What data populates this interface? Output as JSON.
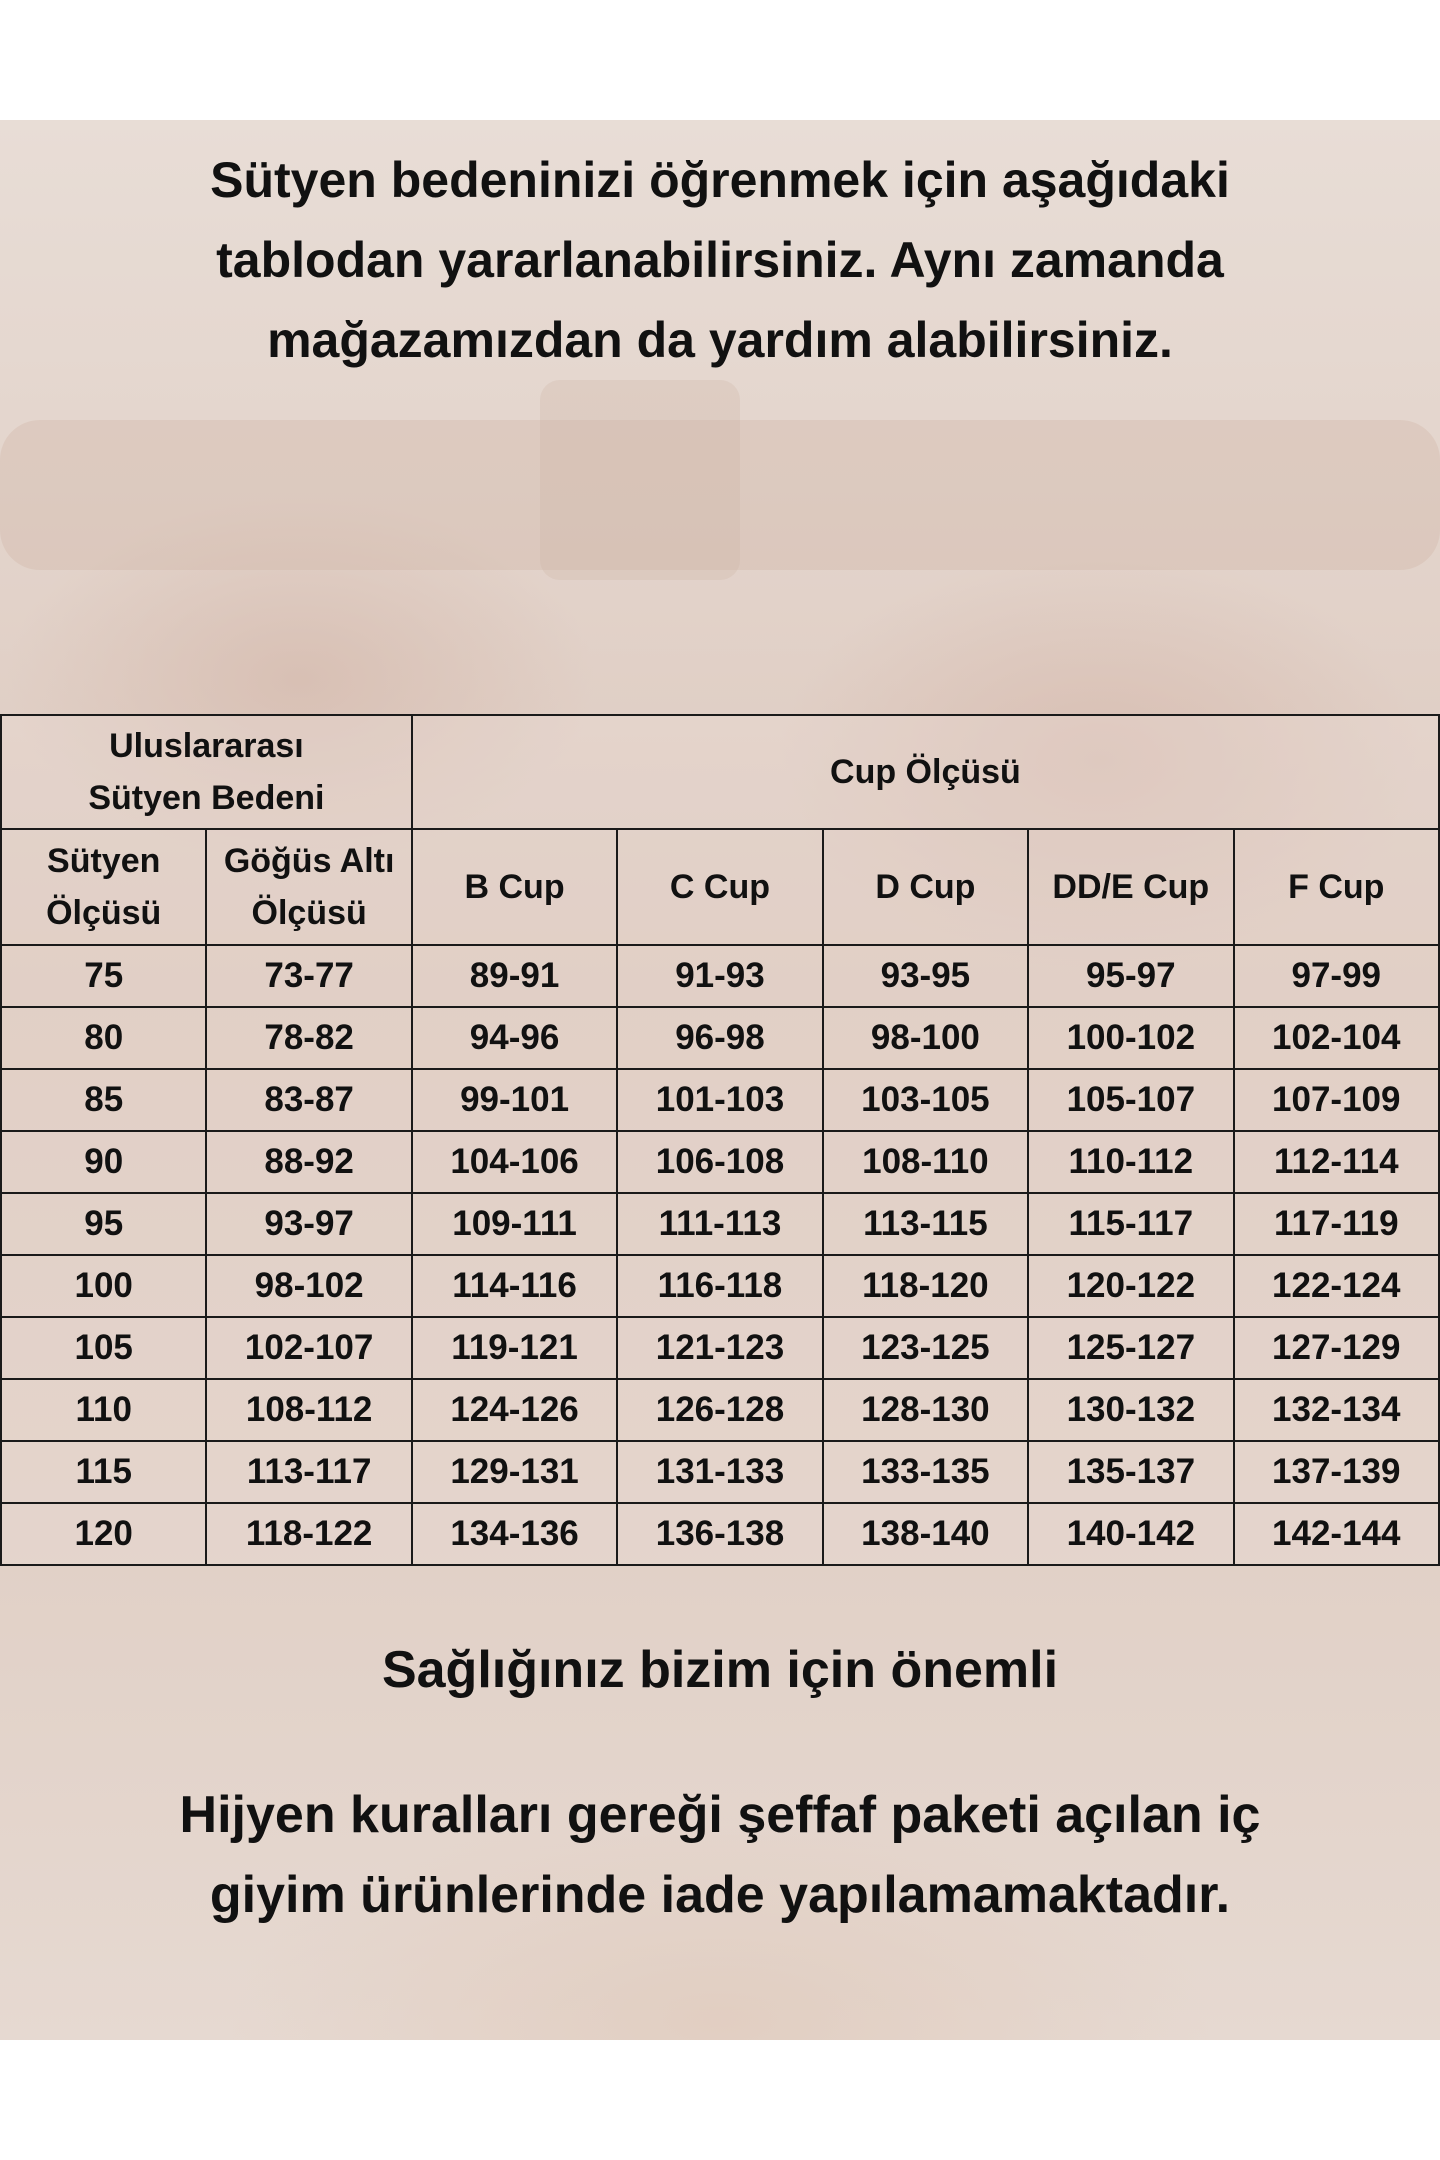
{
  "headline": [
    "Sütyen bedeninizi öğrenmek için aşağıdaki",
    "tablodan yararlanabilirsiniz.  Aynı zamanda",
    "mağazamızdan da yardım alabilirsiniz."
  ],
  "table": {
    "group_header_left": [
      "Uluslararası",
      "Sütyen Bedeni"
    ],
    "group_header_right": "Cup Ölçüsü",
    "columns": [
      [
        "Sütyen",
        "Ölçüsü"
      ],
      [
        "Göğüs Altı",
        "Ölçüsü"
      ],
      [
        "B Cup"
      ],
      [
        "C Cup"
      ],
      [
        "D Cup"
      ],
      [
        "DD/E Cup"
      ],
      [
        "F Cup"
      ]
    ],
    "rows": [
      [
        "75",
        "73-77",
        "89-91",
        "91-93",
        "93-95",
        "95-97",
        "97-99"
      ],
      [
        "80",
        "78-82",
        "94-96",
        "96-98",
        "98-100",
        "100-102",
        "102-104"
      ],
      [
        "85",
        "83-87",
        "99-101",
        "101-103",
        "103-105",
        "105-107",
        "107-109"
      ],
      [
        "90",
        "88-92",
        "104-106",
        "106-108",
        "108-110",
        "110-112",
        "112-114"
      ],
      [
        "95",
        "93-97",
        "109-111",
        "111-113",
        "113-115",
        "115-117",
        "117-119"
      ],
      [
        "100",
        "98-102",
        "114-116",
        "116-118",
        "118-120",
        "120-122",
        "122-124"
      ],
      [
        "105",
        "102-107",
        "119-121",
        "121-123",
        "123-125",
        "125-127",
        "127-129"
      ],
      [
        "110",
        "108-112",
        "124-126",
        "126-128",
        "128-130",
        "130-132",
        "132-134"
      ],
      [
        "115",
        "113-117",
        "129-131",
        "131-133",
        "133-135",
        "135-137",
        "137-139"
      ],
      [
        "120",
        "118-122",
        "134-136",
        "136-138",
        "138-140",
        "140-142",
        "142-144"
      ]
    ]
  },
  "footer": {
    "title": "Sağlığınız bizim için önemli",
    "notice": [
      "Hijyen kuralları gereği şeffaf paketi açılan iç",
      "giyim ürünlerinde iade yapılamamaktadır."
    ]
  },
  "colors": {
    "background_photo": "#e2d2c9",
    "text": "#111111",
    "grid": "#1a1a1a"
  }
}
